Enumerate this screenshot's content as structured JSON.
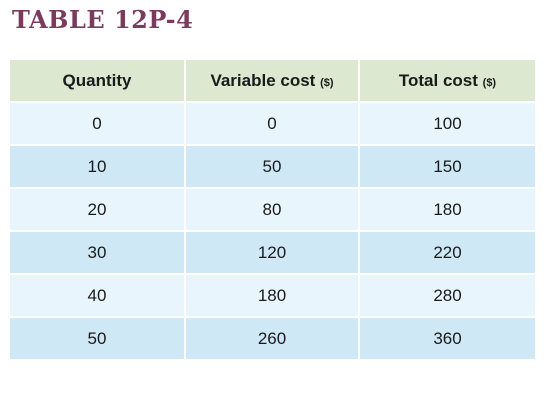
{
  "title": "TABLE 12P-4",
  "table": {
    "headers": [
      {
        "label": "Quantity",
        "unit": ""
      },
      {
        "label": "Variable cost",
        "unit": "($)"
      },
      {
        "label": "Total cost",
        "unit": "($)"
      }
    ],
    "rows": [
      [
        "0",
        "0",
        "100"
      ],
      [
        "10",
        "50",
        "150"
      ],
      [
        "20",
        "80",
        "180"
      ],
      [
        "30",
        "120",
        "220"
      ],
      [
        "40",
        "180",
        "280"
      ],
      [
        "50",
        "260",
        "360"
      ]
    ]
  },
  "colors": {
    "title": "#7c3a5d",
    "header_bg": "#dce8cf",
    "row_light": "#e9f5fd",
    "row_dark": "#cfe8f6"
  }
}
